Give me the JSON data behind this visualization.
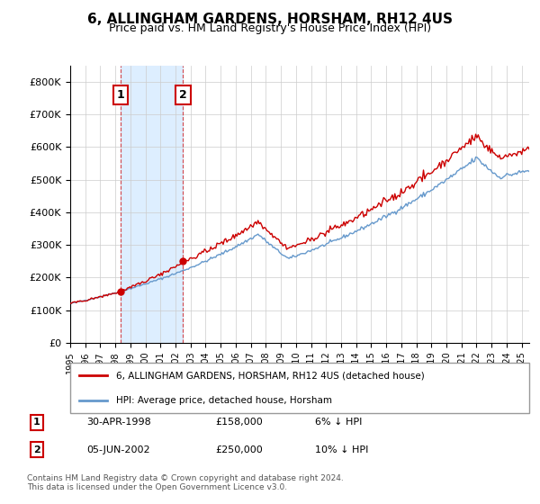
{
  "title": "6, ALLINGHAM GARDENS, HORSHAM, RH12 4US",
  "subtitle": "Price paid vs. HM Land Registry's House Price Index (HPI)",
  "ylabel": "",
  "transactions": [
    {
      "label": "1",
      "date": "1998-04-30",
      "price": 158000,
      "note": "6% ↓ HPI"
    },
    {
      "label": "2",
      "date": "2002-06-05",
      "price": 250000,
      "note": "10% ↓ HPI"
    }
  ],
  "legend_line1": "6, ALLINGHAM GARDENS, HORSHAM, RH12 4US (detached house)",
  "legend_line2": "HPI: Average price, detached house, Horsham",
  "table_rows": [
    [
      "1",
      "30-APR-1998",
      "£158,000",
      "6% ↓ HPI"
    ],
    [
      "2",
      "05-JUN-2002",
      "£250,000",
      "10% ↓ HPI"
    ]
  ],
  "footer": "Contains HM Land Registry data © Crown copyright and database right 2024.\nThis data is licensed under the Open Government Licence v3.0.",
  "line_color_price": "#cc0000",
  "line_color_hpi": "#6699cc",
  "shade_color": "#ddeeff",
  "marker_box_color": "#cc0000",
  "ylim": [
    0,
    850000
  ],
  "yticks": [
    0,
    100000,
    200000,
    300000,
    400000,
    500000,
    600000,
    700000,
    800000
  ],
  "ytick_labels": [
    "£0",
    "£100K",
    "£200K",
    "£300K",
    "£400K",
    "£500K",
    "£600K",
    "£700K",
    "£800K"
  ]
}
